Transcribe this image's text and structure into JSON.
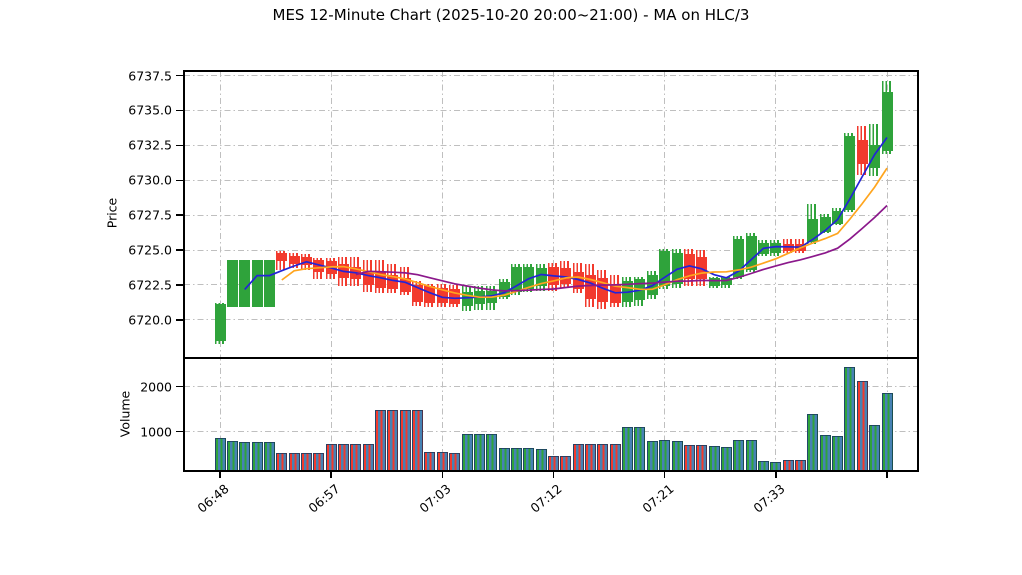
{
  "title": "MES 12-Minute Chart (2025-10-20 20:00~21:00) - MA on HLC/3",
  "price_axis": {
    "label": "Price",
    "ticks": [
      {
        "label": "6737.5",
        "value": 6737.5
      },
      {
        "label": "6735.0",
        "value": 6735.0
      },
      {
        "label": "6732.5",
        "value": 6732.5
      },
      {
        "label": "6730.0",
        "value": 6730.0
      },
      {
        "label": "6727.5",
        "value": 6727.5
      },
      {
        "label": "6725.0",
        "value": 6725.0
      },
      {
        "label": "6722.5",
        "value": 6722.5
      },
      {
        "label": "6720.0",
        "value": 6720.0
      }
    ]
  },
  "volume_axis": {
    "label": "Volume",
    "ticks": [
      {
        "label": "2000",
        "value": 2000
      },
      {
        "label": "1000",
        "value": 1000
      }
    ]
  },
  "x_axis": {
    "ticks": [
      {
        "index": 0,
        "label": "06:48"
      },
      {
        "index": 9,
        "label": "06:57"
      },
      {
        "index": 18,
        "label": "07:03"
      },
      {
        "index": 27,
        "label": "07:12"
      },
      {
        "index": 36,
        "label": "07:21"
      },
      {
        "index": 45,
        "label": "07:33"
      },
      {
        "index": 54,
        "label": ""
      }
    ]
  },
  "colors": {
    "up": "#2fa33b",
    "down": "#f23a2d",
    "volume_base": "#4682b4",
    "ma_fast": "#2323d7",
    "ma_mid": "#ffa51e",
    "ma_slow": "#8b188b",
    "grid": "#bfbfbf",
    "spine": "#000000"
  },
  "chart_data": {
    "type": "candlestick_volume",
    "title": "MES 12-Minute Chart (2025-10-20 20:00~21:00) - MA on HLC/3",
    "price_ylim": [
      6717.3,
      6737.9
    ],
    "volume_ylim": [
      104,
      2650
    ],
    "grid": true,
    "ma": [
      {
        "name": "MA fast on HLC/3",
        "window": 3,
        "color": "#2323d7"
      },
      {
        "name": "MA mid on HLC/3",
        "window": 6,
        "color": "#ffa51e"
      },
      {
        "name": "MA slow on HLC/3",
        "window": 12,
        "color": "#8b188b"
      }
    ],
    "bars": [
      {
        "o": 6718.5,
        "h": 6721.2,
        "l": 6718.3,
        "c": 6721.1,
        "v": 860
      },
      {
        "o": 6720.9,
        "h": 6724.3,
        "l": 6720.9,
        "c": 6724.3,
        "v": 800
      },
      {
        "o": 6720.9,
        "h": 6724.3,
        "l": 6720.9,
        "c": 6724.3,
        "v": 780
      },
      {
        "o": 6720.9,
        "h": 6724.3,
        "l": 6720.9,
        "c": 6724.3,
        "v": 780
      },
      {
        "o": 6720.9,
        "h": 6724.3,
        "l": 6720.9,
        "c": 6724.3,
        "v": 770
      },
      {
        "o": 6724.8,
        "h": 6724.9,
        "l": 6723.6,
        "c": 6724.2,
        "v": 530
      },
      {
        "o": 6724.6,
        "h": 6724.8,
        "l": 6723.7,
        "c": 6724.0,
        "v": 525
      },
      {
        "o": 6724.5,
        "h": 6724.7,
        "l": 6723.6,
        "c": 6723.9,
        "v": 520
      },
      {
        "o": 6724.3,
        "h": 6724.4,
        "l": 6722.9,
        "c": 6723.4,
        "v": 525
      },
      {
        "o": 6724.2,
        "h": 6724.4,
        "l": 6722.9,
        "c": 6723.3,
        "v": 730
      },
      {
        "o": 6724.0,
        "h": 6724.5,
        "l": 6722.4,
        "c": 6723.0,
        "v": 725
      },
      {
        "o": 6723.8,
        "h": 6724.5,
        "l": 6722.4,
        "c": 6722.9,
        "v": 725
      },
      {
        "o": 6723.5,
        "h": 6724.3,
        "l": 6722.0,
        "c": 6722.5,
        "v": 720
      },
      {
        "o": 6723.4,
        "h": 6724.3,
        "l": 6721.9,
        "c": 6722.3,
        "v": 1490
      },
      {
        "o": 6723.2,
        "h": 6724.0,
        "l": 6721.9,
        "c": 6722.2,
        "v": 1490
      },
      {
        "o": 6723.0,
        "h": 6723.8,
        "l": 6721.8,
        "c": 6722.0,
        "v": 1485
      },
      {
        "o": 6722.5,
        "h": 6722.8,
        "l": 6721.0,
        "c": 6721.3,
        "v": 1490
      },
      {
        "o": 6722.4,
        "h": 6722.6,
        "l": 6720.9,
        "c": 6721.2,
        "v": 545
      },
      {
        "o": 6722.3,
        "h": 6722.6,
        "l": 6720.9,
        "c": 6721.2,
        "v": 540
      },
      {
        "o": 6722.2,
        "h": 6722.5,
        "l": 6720.9,
        "c": 6721.1,
        "v": 535
      },
      {
        "o": 6721.0,
        "h": 6722.4,
        "l": 6720.6,
        "c": 6722.0,
        "v": 950
      },
      {
        "o": 6721.1,
        "h": 6722.4,
        "l": 6720.7,
        "c": 6722.1,
        "v": 945
      },
      {
        "o": 6721.2,
        "h": 6722.4,
        "l": 6720.7,
        "c": 6722.1,
        "v": 950
      },
      {
        "o": 6721.6,
        "h": 6722.9,
        "l": 6721.5,
        "c": 6722.7,
        "v": 640
      },
      {
        "o": 6722.0,
        "h": 6724.0,
        "l": 6721.8,
        "c": 6723.8,
        "v": 640
      },
      {
        "o": 6722.2,
        "h": 6724.0,
        "l": 6722.0,
        "c": 6723.8,
        "v": 635
      },
      {
        "o": 6722.4,
        "h": 6724.0,
        "l": 6722.1,
        "c": 6723.7,
        "v": 610
      },
      {
        "o": 6723.8,
        "h": 6724.1,
        "l": 6722.1,
        "c": 6722.5,
        "v": 450
      },
      {
        "o": 6723.7,
        "h": 6724.2,
        "l": 6722.3,
        "c": 6722.6,
        "v": 455
      },
      {
        "o": 6723.4,
        "h": 6724.1,
        "l": 6721.9,
        "c": 6722.2,
        "v": 730
      },
      {
        "o": 6723.2,
        "h": 6724.0,
        "l": 6720.9,
        "c": 6721.5,
        "v": 725
      },
      {
        "o": 6723.0,
        "h": 6723.6,
        "l": 6720.8,
        "c": 6721.3,
        "v": 730
      },
      {
        "o": 6722.6,
        "h": 6723.2,
        "l": 6720.9,
        "c": 6721.2,
        "v": 725
      },
      {
        "o": 6721.3,
        "h": 6723.1,
        "l": 6720.9,
        "c": 6722.8,
        "v": 1100
      },
      {
        "o": 6721.4,
        "h": 6723.1,
        "l": 6721.0,
        "c": 6722.9,
        "v": 1095
      },
      {
        "o": 6721.8,
        "h": 6723.5,
        "l": 6721.5,
        "c": 6723.2,
        "v": 800
      },
      {
        "o": 6722.4,
        "h": 6725.1,
        "l": 6722.2,
        "c": 6724.9,
        "v": 805
      },
      {
        "o": 6722.6,
        "h": 6725.1,
        "l": 6722.3,
        "c": 6724.8,
        "v": 795
      },
      {
        "o": 6724.7,
        "h": 6725.1,
        "l": 6722.4,
        "c": 6722.9,
        "v": 710
      },
      {
        "o": 6724.5,
        "h": 6725.0,
        "l": 6722.4,
        "c": 6722.9,
        "v": 705
      },
      {
        "o": 6722.4,
        "h": 6723.1,
        "l": 6722.3,
        "c": 6723.0,
        "v": 675
      },
      {
        "o": 6722.5,
        "h": 6723.1,
        "l": 6722.3,
        "c": 6723.0,
        "v": 670
      },
      {
        "o": 6723.1,
        "h": 6726.0,
        "l": 6722.9,
        "c": 6725.8,
        "v": 820
      },
      {
        "o": 6723.6,
        "h": 6726.2,
        "l": 6723.4,
        "c": 6726.0,
        "v": 815
      },
      {
        "o": 6724.7,
        "h": 6725.7,
        "l": 6724.6,
        "c": 6725.5,
        "v": 340
      },
      {
        "o": 6724.8,
        "h": 6725.7,
        "l": 6724.6,
        "c": 6725.5,
        "v": 335
      },
      {
        "o": 6725.4,
        "h": 6725.8,
        "l": 6724.8,
        "c": 6724.9,
        "v": 380
      },
      {
        "o": 6725.4,
        "h": 6725.8,
        "l": 6724.8,
        "c": 6724.9,
        "v": 375
      },
      {
        "o": 6725.6,
        "h": 6728.3,
        "l": 6725.4,
        "c": 6727.2,
        "v": 1390
      },
      {
        "o": 6726.3,
        "h": 6727.6,
        "l": 6726.2,
        "c": 6727.4,
        "v": 920
      },
      {
        "o": 6726.9,
        "h": 6728.0,
        "l": 6726.8,
        "c": 6727.8,
        "v": 915
      },
      {
        "o": 6727.9,
        "h": 6733.4,
        "l": 6727.7,
        "c": 6733.2,
        "v": 2440
      },
      {
        "o": 6732.9,
        "h": 6733.9,
        "l": 6730.4,
        "c": 6731.2,
        "v": 2120
      },
      {
        "o": 6730.9,
        "h": 6734.0,
        "l": 6730.3,
        "c": 6732.5,
        "v": 1150
      },
      {
        "o": 6732.1,
        "h": 6737.1,
        "l": 6731.9,
        "c": 6736.3,
        "v": 1850
      }
    ]
  }
}
